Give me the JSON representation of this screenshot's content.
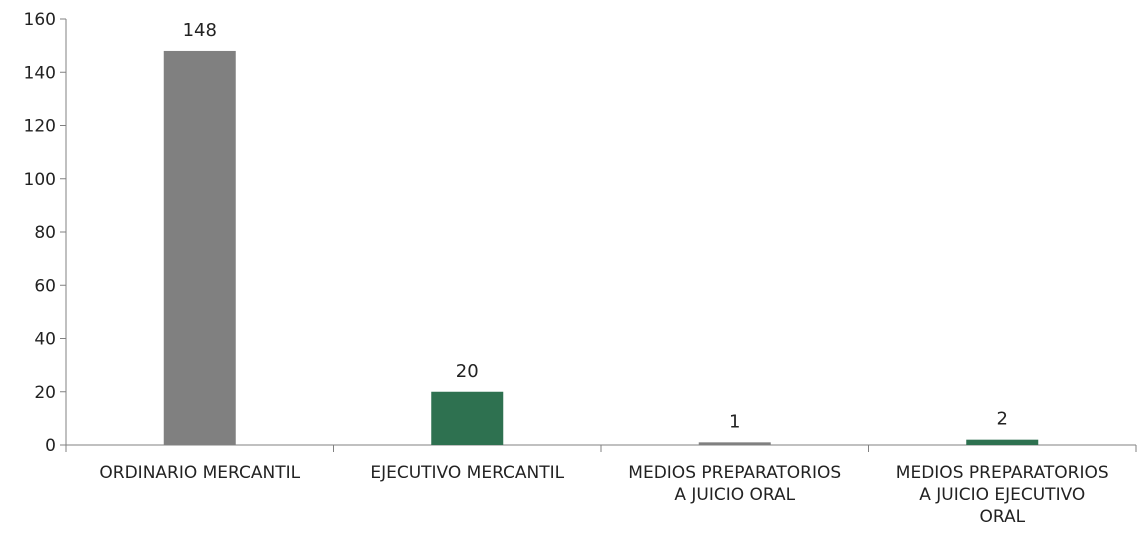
{
  "chart_data": {
    "type": "bar",
    "categories": [
      "ORDINARIO MERCANTIL",
      "EJECUTIVO MERCANTIL",
      "MEDIOS PREPARATORIOS A JUICIO ORAL",
      "MEDIOS PREPARATORIOS A JUICIO EJECUTIVO ORAL"
    ],
    "category_lines": [
      [
        "ORDINARIO MERCANTIL"
      ],
      [
        "EJECUTIVO MERCANTIL"
      ],
      [
        "MEDIOS PREPARATORIOS",
        "A JUICIO ORAL"
      ],
      [
        "MEDIOS PREPARATORIOS",
        "A JUICIO EJECUTIVO",
        "ORAL"
      ]
    ],
    "values": [
      148,
      20,
      1,
      2
    ],
    "data_labels": [
      "148",
      "20",
      "1",
      "2"
    ],
    "bar_colors": [
      "#808080",
      "#2e7150",
      "#808080",
      "#2e7150"
    ],
    "ylim": [
      0,
      160
    ],
    "yticks": [
      0,
      20,
      40,
      60,
      80,
      100,
      120,
      140,
      160
    ],
    "ytick_labels": [
      "0",
      "20",
      "40",
      "60",
      "80",
      "100",
      "120",
      "140",
      "160"
    ],
    "grid": false,
    "legend": "none"
  }
}
